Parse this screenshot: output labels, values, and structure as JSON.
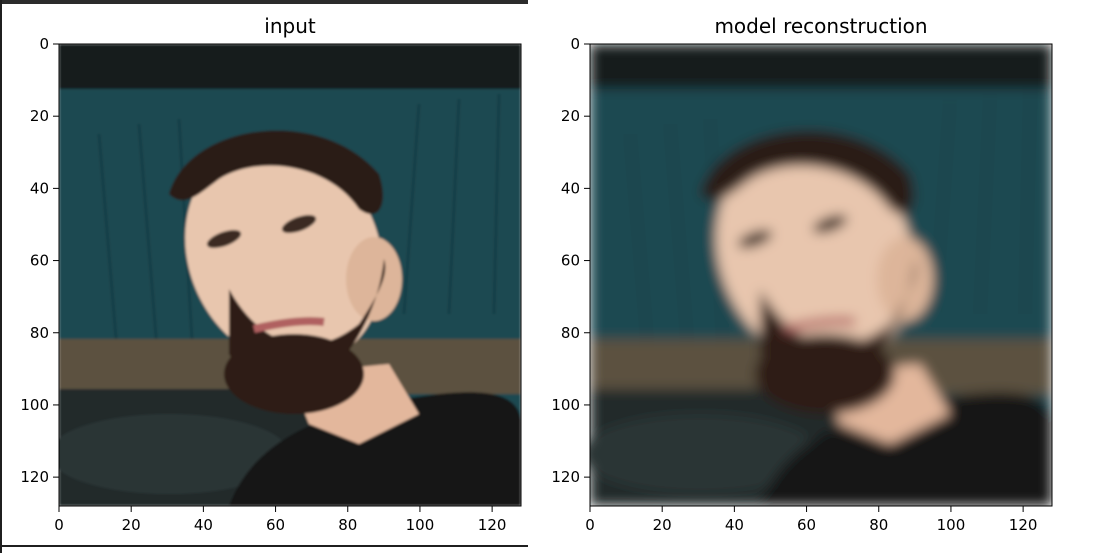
{
  "chart_data": [
    {
      "type": "image",
      "title": "input",
      "xlim": [
        0,
        128
      ],
      "ylim": [
        128,
        0
      ],
      "xticks": [
        0,
        20,
        40,
        60,
        80,
        100,
        120
      ],
      "yticks": [
        0,
        20,
        40,
        60,
        80,
        100,
        120
      ],
      "image_content": "photo of a bearded man in a black t-shirt in front of a teal background"
    },
    {
      "type": "image",
      "title": "model reconstruction",
      "xlim": [
        0,
        128
      ],
      "ylim": [
        128,
        0
      ],
      "xticks": [
        0,
        20,
        40,
        60,
        80,
        100,
        120
      ],
      "yticks": [
        0,
        20,
        40,
        60,
        80,
        100,
        120
      ],
      "image_content": "blurry reconstruction of the same face photo"
    }
  ],
  "colors": {
    "background_teal": "#1f4a52",
    "skin": "#e8c6ae",
    "hair": "#2a1a12",
    "shirt": "#151515",
    "axis": "#000000"
  }
}
